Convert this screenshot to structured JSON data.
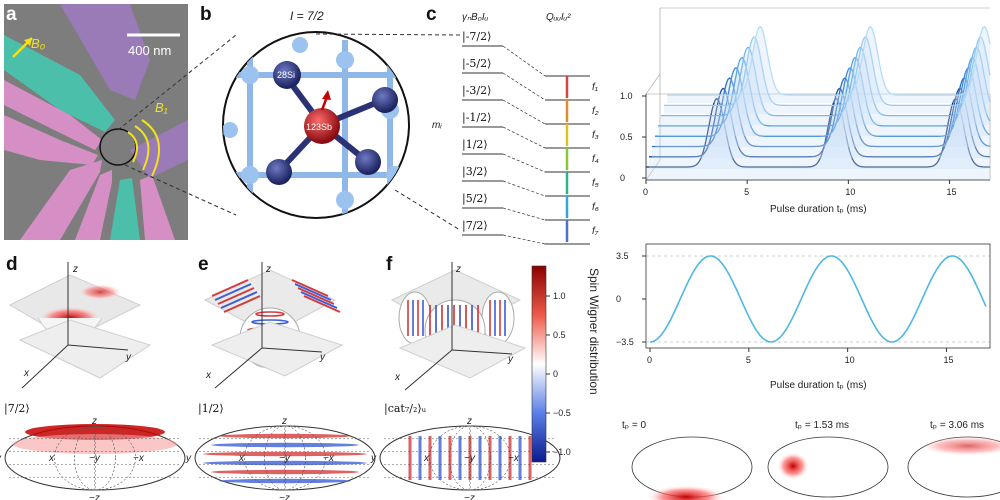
{
  "panels": {
    "a": {
      "label": "a",
      "field_b0": "B₀",
      "field_b1": "B₁",
      "scale_bar": "400 nm"
    },
    "b": {
      "label": "b",
      "spin_label": "I = 7/2",
      "atom_si": "28Si",
      "atom_sb": "123Sb"
    },
    "c": {
      "label": "c",
      "col_zeeman": "γₙB₀Iᵤ",
      "col_quad": "QᵤᵤIᵤ²",
      "row_axis": "mᵢ",
      "kets": [
        "|-7/2⟩",
        "|-5/2⟩",
        "|-3/2⟩",
        "|-1/2⟩",
        "|1/2⟩",
        "|3/2⟩",
        "|5/2⟩",
        "|7/2⟩"
      ],
      "transitions": [
        "f₁",
        "f₂",
        "f₃",
        "f₄",
        "f₅",
        "f₆",
        "f₇"
      ]
    },
    "d": {
      "label": "d",
      "state": "|7/2⟩"
    },
    "e": {
      "label": "e",
      "state": "|1/2⟩"
    },
    "f": {
      "label": "f",
      "state": "|cat₇/₂⟩ᵤ"
    },
    "axes3d": {
      "x": "x",
      "y": "y",
      "z": "z"
    },
    "hammer": {
      "top": "z",
      "bottom": "−z",
      "left": "y",
      "center": "−y",
      "x_left": "x",
      "x_right": "−x"
    },
    "colorbar": {
      "title": "Spin Wigner distribution",
      "ticks": [
        "1.0",
        "0.5",
        "0",
        "−0.5",
        "−1.0"
      ]
    },
    "top_plot": {
      "y_ticks": [
        "0",
        "0.5",
        "1.0"
      ],
      "x_ticks": [
        "0",
        "5",
        "10",
        "15"
      ],
      "x_label": "Pulse duration tₚ (ms)"
    },
    "mid_plot": {
      "y_ticks": [
        "3.5",
        "0",
        "−3.5"
      ],
      "x_ticks": [
        "0",
        "5",
        "10",
        "15"
      ],
      "x_label": "Pulse duration tₚ (ms)"
    },
    "bottom_strip": {
      "labels": [
        "tₚ = 0",
        "tₚ = 1.53 ms",
        "tₚ = 3.06 ms"
      ]
    }
  },
  "chart_data": [
    {
      "type": "line",
      "title": "",
      "xlabel": "Pulse duration tₚ (ms)",
      "ylabel": "",
      "xlim": [
        0,
        17
      ],
      "ylim": [
        0,
        1.2
      ],
      "x": [
        0,
        1,
        2,
        3,
        4,
        5,
        6,
        7,
        8,
        9,
        10,
        11,
        12,
        13,
        14,
        15,
        16,
        17
      ],
      "period_ms": 6.1,
      "series": [
        {
          "peak_ms": [
            3.5,
            9.4,
            15.3
          ]
        },
        {
          "peak_ms": [
            3.7,
            9.5,
            15.5
          ]
        },
        {
          "peak_ms": [
            3.9,
            9.7,
            15.7
          ]
        },
        {
          "peak_ms": [
            4.1,
            9.9,
            15.9
          ]
        },
        {
          "peak_ms": [
            4.3,
            10.1,
            16.1
          ]
        },
        {
          "peak_ms": [
            4.5,
            10.3,
            16.3
          ]
        },
        {
          "peak_ms": [
            4.7,
            10.5,
            16.5
          ]
        },
        {
          "peak_ms": [
            4.9,
            10.7,
            16.7
          ]
        }
      ]
    },
    {
      "type": "line",
      "title": "",
      "xlabel": "Pulse duration tₚ (ms)",
      "ylabel": "",
      "xlim": [
        0,
        17
      ],
      "ylim": [
        -3.5,
        3.5
      ],
      "amplitude": 3.5,
      "period_ms": 6.12,
      "phase_start": -3.5
    }
  ]
}
